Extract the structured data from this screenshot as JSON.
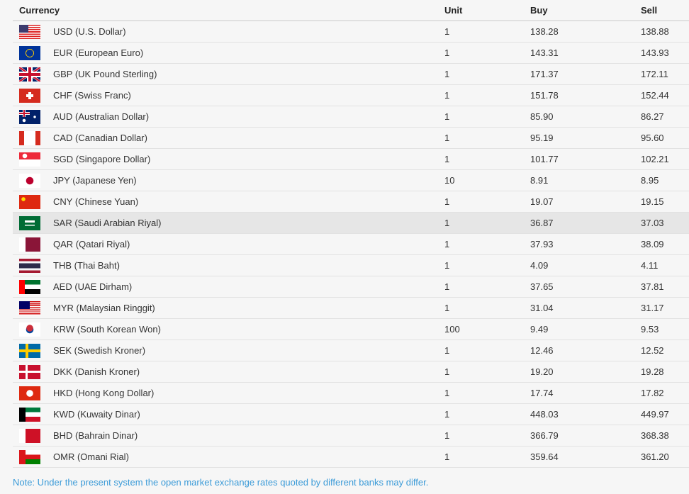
{
  "table": {
    "headers": {
      "currency": "Currency",
      "unit": "Unit",
      "buy": "Buy",
      "sell": "Sell"
    },
    "highlighted_row": 9,
    "rows": [
      {
        "flag": "us-flag-icon",
        "currency": "USD (U.S. Dollar)",
        "unit": "1",
        "buy": "138.28",
        "sell": "138.88"
      },
      {
        "flag": "eu-flag-icon",
        "currency": "EUR (European Euro)",
        "unit": "1",
        "buy": "143.31",
        "sell": "143.93"
      },
      {
        "flag": "gb-flag-icon",
        "currency": "GBP (UK Pound Sterling)",
        "unit": "1",
        "buy": "171.37",
        "sell": "172.11"
      },
      {
        "flag": "ch-flag-icon",
        "currency": "CHF (Swiss Franc)",
        "unit": "1",
        "buy": "151.78",
        "sell": "152.44"
      },
      {
        "flag": "au-flag-icon",
        "currency": "AUD (Australian Dollar)",
        "unit": "1",
        "buy": "85.90",
        "sell": "86.27"
      },
      {
        "flag": "ca-flag-icon",
        "currency": "CAD (Canadian Dollar)",
        "unit": "1",
        "buy": "95.19",
        "sell": "95.60"
      },
      {
        "flag": "sg-flag-icon",
        "currency": "SGD (Singapore Dollar)",
        "unit": "1",
        "buy": "101.77",
        "sell": "102.21"
      },
      {
        "flag": "jp-flag-icon",
        "currency": "JPY (Japanese Yen)",
        "unit": "10",
        "buy": "8.91",
        "sell": "8.95"
      },
      {
        "flag": "cn-flag-icon",
        "currency": "CNY (Chinese Yuan)",
        "unit": "1",
        "buy": "19.07",
        "sell": "19.15"
      },
      {
        "flag": "sa-flag-icon",
        "currency": "SAR (Saudi Arabian Riyal)",
        "unit": "1",
        "buy": "36.87",
        "sell": "37.03"
      },
      {
        "flag": "qa-flag-icon",
        "currency": "QAR (Qatari Riyal)",
        "unit": "1",
        "buy": "37.93",
        "sell": "38.09"
      },
      {
        "flag": "th-flag-icon",
        "currency": "THB (Thai Baht)",
        "unit": "1",
        "buy": "4.09",
        "sell": "4.11"
      },
      {
        "flag": "ae-flag-icon",
        "currency": "AED (UAE Dirham)",
        "unit": "1",
        "buy": "37.65",
        "sell": "37.81"
      },
      {
        "flag": "my-flag-icon",
        "currency": "MYR (Malaysian Ringgit)",
        "unit": "1",
        "buy": "31.04",
        "sell": "31.17"
      },
      {
        "flag": "kr-flag-icon",
        "currency": "KRW (South Korean Won)",
        "unit": "100",
        "buy": "9.49",
        "sell": "9.53"
      },
      {
        "flag": "se-flag-icon",
        "currency": "SEK (Swedish Kroner)",
        "unit": "1",
        "buy": "12.46",
        "sell": "12.52"
      },
      {
        "flag": "dk-flag-icon",
        "currency": "DKK (Danish Kroner)",
        "unit": "1",
        "buy": "19.20",
        "sell": "19.28"
      },
      {
        "flag": "hk-flag-icon",
        "currency": "HKD (Hong Kong Dollar)",
        "unit": "1",
        "buy": "17.74",
        "sell": "17.82"
      },
      {
        "flag": "kw-flag-icon",
        "currency": "KWD (Kuwaity Dinar)",
        "unit": "1",
        "buy": "448.03",
        "sell": "449.97"
      },
      {
        "flag": "bh-flag-icon",
        "currency": "BHD (Bahrain Dinar)",
        "unit": "1",
        "buy": "366.79",
        "sell": "368.38"
      },
      {
        "flag": "om-flag-icon",
        "currency": "OMR (Omani Rial)",
        "unit": "1",
        "buy": "359.64",
        "sell": "361.20"
      }
    ]
  },
  "note": "Note: Under the present system the open market exchange rates quoted by different banks may differ.",
  "colors": {
    "note": "#3b9bd8",
    "highlight_row": "#e6e6e6",
    "background": "#f6f6f6"
  }
}
